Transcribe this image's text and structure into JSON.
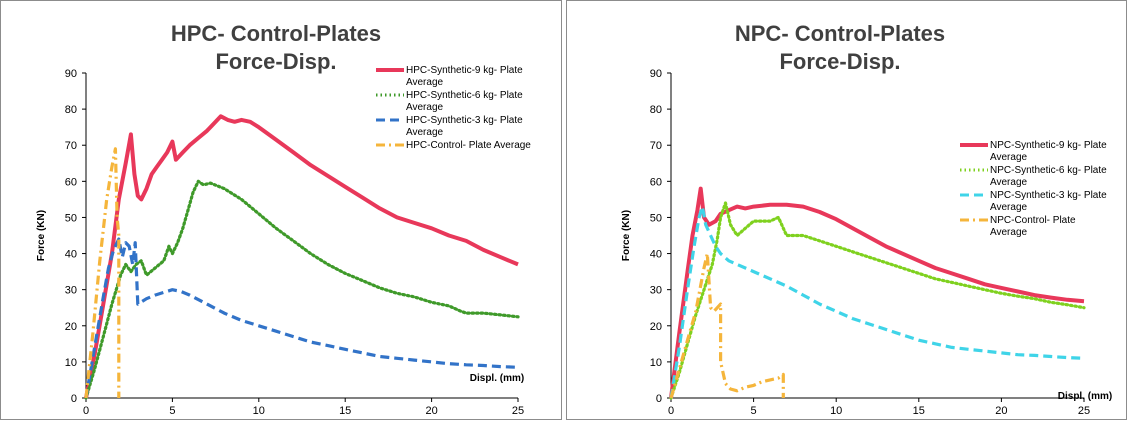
{
  "chart_data": [
    {
      "type": "line",
      "title": [
        "HPC- Control-Plates",
        "Force-Disp."
      ],
      "xlabel": "Displ. (mm)",
      "ylabel": "Force (KN)",
      "xlim": [
        0,
        25
      ],
      "ylim": [
        0,
        90
      ],
      "xticks": [
        "0",
        "5",
        "10",
        "15",
        "20",
        "25"
      ],
      "yticks": [
        "0",
        "10",
        "20",
        "30",
        "40",
        "50",
        "60",
        "70",
        "80",
        "90"
      ],
      "grid": false,
      "legend_position": "top-right",
      "series": [
        {
          "name": [
            "HPC-Synthetic-9 kg- Plate",
            "Average"
          ],
          "color": "#e8385a",
          "style": "solid",
          "x": [
            0,
            0.5,
            1.0,
            1.5,
            1.9,
            2.3,
            2.6,
            2.8,
            3.0,
            3.2,
            3.5,
            3.8,
            4.1,
            4.4,
            4.7,
            5.0,
            5.2,
            5.6,
            6.0,
            6.5,
            7.0,
            7.5,
            7.8,
            8.2,
            8.6,
            9.0,
            9.5,
            10,
            11,
            12,
            13,
            14,
            15,
            16,
            17,
            18,
            19,
            20,
            21,
            22,
            23,
            24,
            25
          ],
          "y": [
            0,
            12,
            26,
            40,
            55,
            65,
            73,
            62,
            56,
            55,
            58,
            62,
            64,
            66,
            68,
            71,
            66,
            68,
            70,
            72,
            74,
            76.5,
            78,
            77,
            76.5,
            77,
            76.5,
            75,
            71.5,
            68,
            64.5,
            61.5,
            58.5,
            55.5,
            52.5,
            50,
            48.5,
            47,
            45,
            43.5,
            41,
            39,
            37
          ]
        },
        {
          "name": [
            "HPC-Synthetic-6 kg- Plate",
            "Average"
          ],
          "color": "#3f9a2a",
          "style": "dotted",
          "x": [
            0,
            0.5,
            1.0,
            1.5,
            2.0,
            2.3,
            2.6,
            2.9,
            3.2,
            3.5,
            4.0,
            4.5,
            4.8,
            5.0,
            5.3,
            5.6,
            5.9,
            6.2,
            6.5,
            6.8,
            7.2,
            8.0,
            9.0,
            10,
            11,
            12,
            13,
            14,
            15,
            16,
            17,
            18,
            19,
            20,
            21,
            21.7,
            22,
            23,
            24,
            25
          ],
          "y": [
            0,
            8,
            17,
            26,
            34,
            37,
            35,
            37,
            38,
            34,
            36,
            38,
            42,
            40,
            43,
            47,
            52,
            57,
            60,
            59,
            59.5,
            58,
            55,
            51,
            47,
            43.5,
            40,
            37,
            34.5,
            32.5,
            30.5,
            29,
            28,
            26.5,
            25.5,
            24,
            23.5,
            23.5,
            23,
            22.5
          ]
        },
        {
          "name": [
            "HPC-Synthetic-3 kg- Plate",
            "Average"
          ],
          "color": "#3273c8",
          "style": "dashed",
          "x": [
            0,
            0.5,
            1.0,
            1.3,
            1.6,
            1.9,
            2.1,
            2.3,
            2.5,
            2.7,
            2.85,
            3.0,
            3.5,
            4.0,
            5.0,
            5.5,
            6.0,
            7.0,
            8.0,
            9.0,
            10,
            11,
            12,
            13,
            14,
            15,
            16,
            17,
            18,
            19,
            20,
            21,
            22,
            23,
            24,
            25
          ],
          "y": [
            0,
            14,
            28,
            36,
            41,
            44,
            39,
            43,
            42,
            37,
            43,
            26,
            27.5,
            28.5,
            30,
            29.5,
            28.5,
            26,
            23.5,
            21.5,
            20,
            18.5,
            17,
            15.5,
            14.5,
            13.5,
            12.5,
            11.5,
            11,
            10.5,
            10,
            9.5,
            9.2,
            9,
            8.7,
            8.5
          ]
        },
        {
          "name": [
            "HPC-Control- Plate Average"
          ],
          "color": "#f5b53b",
          "style": "dashdot",
          "x": [
            0,
            0.4,
            0.8,
            1.2,
            1.5,
            1.7,
            1.8,
            1.9,
            1.9
          ],
          "y": [
            0,
            18,
            38,
            55,
            64,
            69,
            50,
            45,
            0
          ]
        }
      ]
    },
    {
      "type": "line",
      "title": [
        "NPC- Control-Plates",
        "Force-Disp."
      ],
      "xlabel": "Displ. (mm)",
      "ylabel": "Force (KN)",
      "xlim": [
        0,
        25
      ],
      "ylim": [
        0,
        90
      ],
      "xticks": [
        "0",
        "5",
        "10",
        "15",
        "20",
        "25"
      ],
      "yticks": [
        "0",
        "10",
        "20",
        "30",
        "40",
        "50",
        "60",
        "70",
        "80",
        "90"
      ],
      "grid": false,
      "legend_position": "top-right",
      "series": [
        {
          "name": [
            "NPC-Synthetic-9 kg- Plate",
            "Average"
          ],
          "color": "#e8385a",
          "style": "solid",
          "x": [
            0,
            0.5,
            1.0,
            1.3,
            1.6,
            1.8,
            2.0,
            2.3,
            2.7,
            3.0,
            3.5,
            4.0,
            4.5,
            5.0,
            6.0,
            7.0,
            8.0,
            9.0,
            10,
            11,
            12,
            13,
            14,
            15,
            16,
            17,
            18,
            19,
            20,
            21,
            22,
            23,
            24,
            25
          ],
          "y": [
            0,
            18,
            35,
            45,
            52,
            58,
            50,
            48,
            49,
            51,
            52,
            53,
            52.5,
            53,
            53.5,
            53.5,
            53,
            51.5,
            49.5,
            47,
            44.5,
            42,
            40,
            38,
            36,
            34.5,
            33,
            31.5,
            30.5,
            29.5,
            28.5,
            27.8,
            27.2,
            26.8
          ]
        },
        {
          "name": [
            "NPC-Synthetic-6 kg- Plate",
            "Average"
          ],
          "color": "#7fd11f",
          "style": "dotted",
          "x": [
            0,
            0.5,
            1.0,
            1.5,
            2.0,
            2.5,
            2.8,
            3.0,
            3.3,
            3.6,
            4.0,
            4.5,
            5.0,
            6.0,
            6.5,
            7.0,
            7.5,
            8.0,
            9.0,
            10,
            11,
            12,
            13,
            14,
            15,
            16,
            17,
            18,
            19,
            20,
            21,
            22,
            23,
            24,
            25
          ],
          "y": [
            0,
            7,
            15,
            23,
            30,
            37,
            44,
            50,
            54,
            48,
            45,
            47,
            49,
            49,
            50,
            45,
            45,
            45,
            43.5,
            42,
            40.5,
            39,
            37.5,
            36,
            34.5,
            33,
            32,
            31,
            30,
            29,
            28.2,
            27.5,
            26.5,
            25.8,
            25
          ]
        },
        {
          "name": [
            "NPC-Synthetic-3 kg- Plate",
            "Average"
          ],
          "color": "#3fd4e8",
          "style": "dashed",
          "x": [
            0,
            0.5,
            1.0,
            1.4,
            1.7,
            1.9,
            2.1,
            2.4,
            2.7,
            3.0,
            3.5,
            4.0,
            5.0,
            6.0,
            7.0,
            8.0,
            9.0,
            10,
            11,
            12,
            13,
            14,
            15,
            16,
            17,
            18,
            19,
            20,
            21,
            22,
            23,
            24,
            25
          ],
          "y": [
            0,
            14,
            30,
            42,
            50,
            53,
            48,
            45,
            42,
            40,
            38,
            37,
            35,
            33,
            31,
            28.5,
            26,
            24,
            22,
            20.5,
            19,
            17.5,
            16,
            15,
            14,
            13.5,
            13,
            12.5,
            12,
            11.8,
            11.5,
            11.2,
            11
          ]
        },
        {
          "name": [
            "NPC-Control- Plate",
            "Average"
          ],
          "color": "#f5b53b",
          "style": "dashdot",
          "x": [
            0,
            0.5,
            1.0,
            1.5,
            2.0,
            2.2,
            2.4,
            2.6,
            2.8,
            3.0,
            3.0,
            3.3,
            3.6,
            4.0,
            4.5,
            5.0,
            5.5,
            6.0,
            6.5,
            6.8,
            6.8
          ],
          "y": [
            0,
            8,
            16,
            24,
            36,
            40,
            25,
            24,
            25,
            26,
            10,
            4,
            2.5,
            2,
            3,
            3.5,
            4.5,
            5,
            5.5,
            6.5,
            0
          ]
        }
      ]
    }
  ]
}
